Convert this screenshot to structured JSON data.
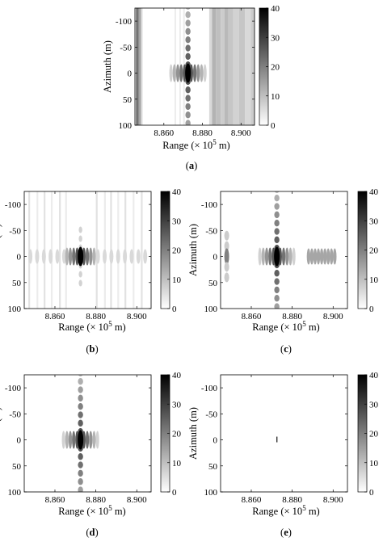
{
  "chart_data": [
    {
      "type": "heatmap",
      "caption_letter": "a",
      "caption_open": "(",
      "caption_close": ")",
      "xlabel_prefix": "Range (× 10",
      "xlabel_exponent": "5",
      "xlabel_suffix": " m)",
      "ylabel": "Azimuth (m)",
      "xticks": [
        "8.860",
        "8.880",
        "8.900"
      ],
      "xtick_values": [
        8.86,
        8.88,
        8.9
      ],
      "xlim": [
        8.845,
        8.907
      ],
      "yticks": [
        "-100",
        "-50",
        "0",
        "50",
        "100"
      ],
      "ytick_values": [
        -100,
        -50,
        0,
        50,
        100
      ],
      "ylim": [
        -125,
        100
      ],
      "colorbar_ticks": [
        "40",
        "30",
        "20",
        "10",
        "0"
      ],
      "colorbar_values": [
        40,
        30,
        20,
        10,
        0
      ],
      "colorbar_range": [
        0,
        40
      ],
      "target": {
        "range": 8.8725,
        "azimuth": 0,
        "peak": 40
      },
      "clutter": "vertical-stripes"
    },
    {
      "type": "heatmap",
      "caption_letter": "b",
      "caption_open": "(",
      "caption_close": ")",
      "xlabel_prefix": "Range (× 10",
      "xlabel_exponent": "5",
      "xlabel_suffix": " m)",
      "ylabel": "Azimuth (m)",
      "xticks": [
        "8.860",
        "8.880",
        "8.900"
      ],
      "xtick_values": [
        8.86,
        8.88,
        8.9
      ],
      "xlim": [
        8.845,
        8.907
      ],
      "yticks": [
        "-100",
        "-50",
        "0",
        "50",
        "100"
      ],
      "ytick_values": [
        -100,
        -50,
        0,
        50,
        100
      ],
      "ylim": [
        -125,
        100
      ],
      "colorbar_ticks": [
        "40",
        "30",
        "20",
        "10",
        "0"
      ],
      "colorbar_values": [
        40,
        30,
        20,
        10,
        0
      ],
      "colorbar_range": [
        0,
        40
      ],
      "target": {
        "range": 8.8725,
        "azimuth": 0,
        "peak": 40
      },
      "clutter": "faint-stripes"
    },
    {
      "type": "heatmap",
      "caption_letter": "c",
      "caption_open": "(",
      "caption_close": ")",
      "xlabel_prefix": "Range (× 10",
      "xlabel_exponent": "5",
      "xlabel_suffix": " m)",
      "ylabel": "Azimuth (m)",
      "xticks": [
        "8.860",
        "8.880",
        "8.900"
      ],
      "xtick_values": [
        8.86,
        8.88,
        8.9
      ],
      "xlim": [
        8.845,
        8.907
      ],
      "yticks": [
        "-100",
        "-50",
        "0",
        "50",
        "100"
      ],
      "ytick_values": [
        -100,
        -50,
        0,
        50,
        100
      ],
      "ylim": [
        -125,
        100
      ],
      "colorbar_ticks": [
        "40",
        "30",
        "20",
        "10",
        "0"
      ],
      "colorbar_values": [
        40,
        30,
        20,
        10,
        0
      ],
      "colorbar_range": [
        0,
        40
      ],
      "target": {
        "range": 8.8725,
        "azimuth": 0,
        "peak": 40
      },
      "clutter": "blobs"
    },
    {
      "type": "heatmap",
      "caption_letter": "d",
      "caption_open": "(",
      "caption_close": ")",
      "xlabel_prefix": "Range (× 10",
      "xlabel_exponent": "5",
      "xlabel_suffix": " m)",
      "ylabel": "Azimuth (m)",
      "xticks": [
        "8.860",
        "8.880",
        "8.900"
      ],
      "xtick_values": [
        8.86,
        8.88,
        8.9
      ],
      "xlim": [
        8.845,
        8.907
      ],
      "yticks": [
        "-100",
        "-50",
        "0",
        "50",
        "100"
      ],
      "ytick_values": [
        -100,
        -50,
        0,
        50,
        100
      ],
      "ylim": [
        -125,
        100
      ],
      "colorbar_ticks": [
        "40",
        "30",
        "20",
        "10",
        "0"
      ],
      "colorbar_values": [
        40,
        30,
        20,
        10,
        0
      ],
      "colorbar_range": [
        0,
        40
      ],
      "target": {
        "range": 8.8725,
        "azimuth": 0,
        "peak": 40
      },
      "clutter": "none"
    },
    {
      "type": "heatmap",
      "caption_letter": "e",
      "caption_open": "(",
      "caption_close": ")",
      "xlabel_prefix": "Range (× 10",
      "xlabel_exponent": "5",
      "xlabel_suffix": " m)",
      "ylabel": "Azimuth (m)",
      "xticks": [
        "8.860",
        "8.880",
        "8.900"
      ],
      "xtick_values": [
        8.86,
        8.88,
        8.9
      ],
      "xlim": [
        8.845,
        8.907
      ],
      "yticks": [
        "-100",
        "-50",
        "0",
        "50",
        "100"
      ],
      "ytick_values": [
        -100,
        -50,
        0,
        50,
        100
      ],
      "ylim": [
        -125,
        100
      ],
      "colorbar_ticks": [
        "40",
        "30",
        "20",
        "10",
        "0"
      ],
      "colorbar_values": [
        40,
        30,
        20,
        10,
        0
      ],
      "colorbar_range": [
        0,
        40
      ],
      "target": {
        "range": 8.8725,
        "azimuth": 0,
        "peak": 40
      },
      "clutter": "point-only"
    }
  ]
}
